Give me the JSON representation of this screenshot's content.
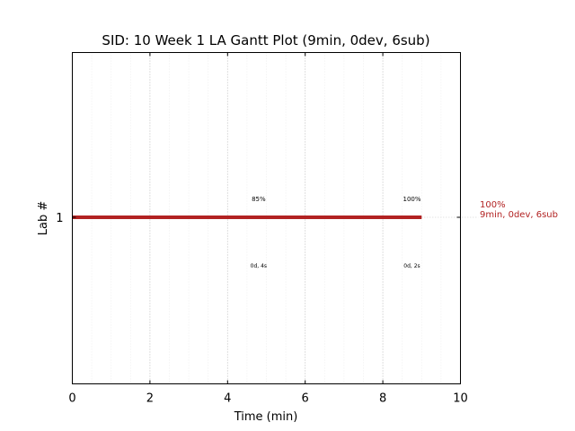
{
  "chart_data": {
    "type": "gantt",
    "title": "SID: 10 Week 1 LA Gantt Plot (9min, 0dev, 6sub)",
    "xlabel": "Time (min)",
    "ylabel": "Lab #",
    "xlim": [
      0,
      10
    ],
    "xticks": [
      "0",
      "2",
      "4",
      "6",
      "8",
      "10"
    ],
    "yticks": [
      "1"
    ],
    "grid": true,
    "bar_color": "#b22222",
    "bars": [
      {
        "lab": "1",
        "start": 0,
        "end": 9
      }
    ],
    "annotations": [
      {
        "x": 4.8,
        "above": "85%",
        "below": "0d, 4s"
      },
      {
        "x": 8.75,
        "above": "100%",
        "below": "0d, 2s"
      }
    ],
    "side_label": {
      "line1": "100%",
      "line2": "9min, 0dev, 6sub"
    }
  }
}
